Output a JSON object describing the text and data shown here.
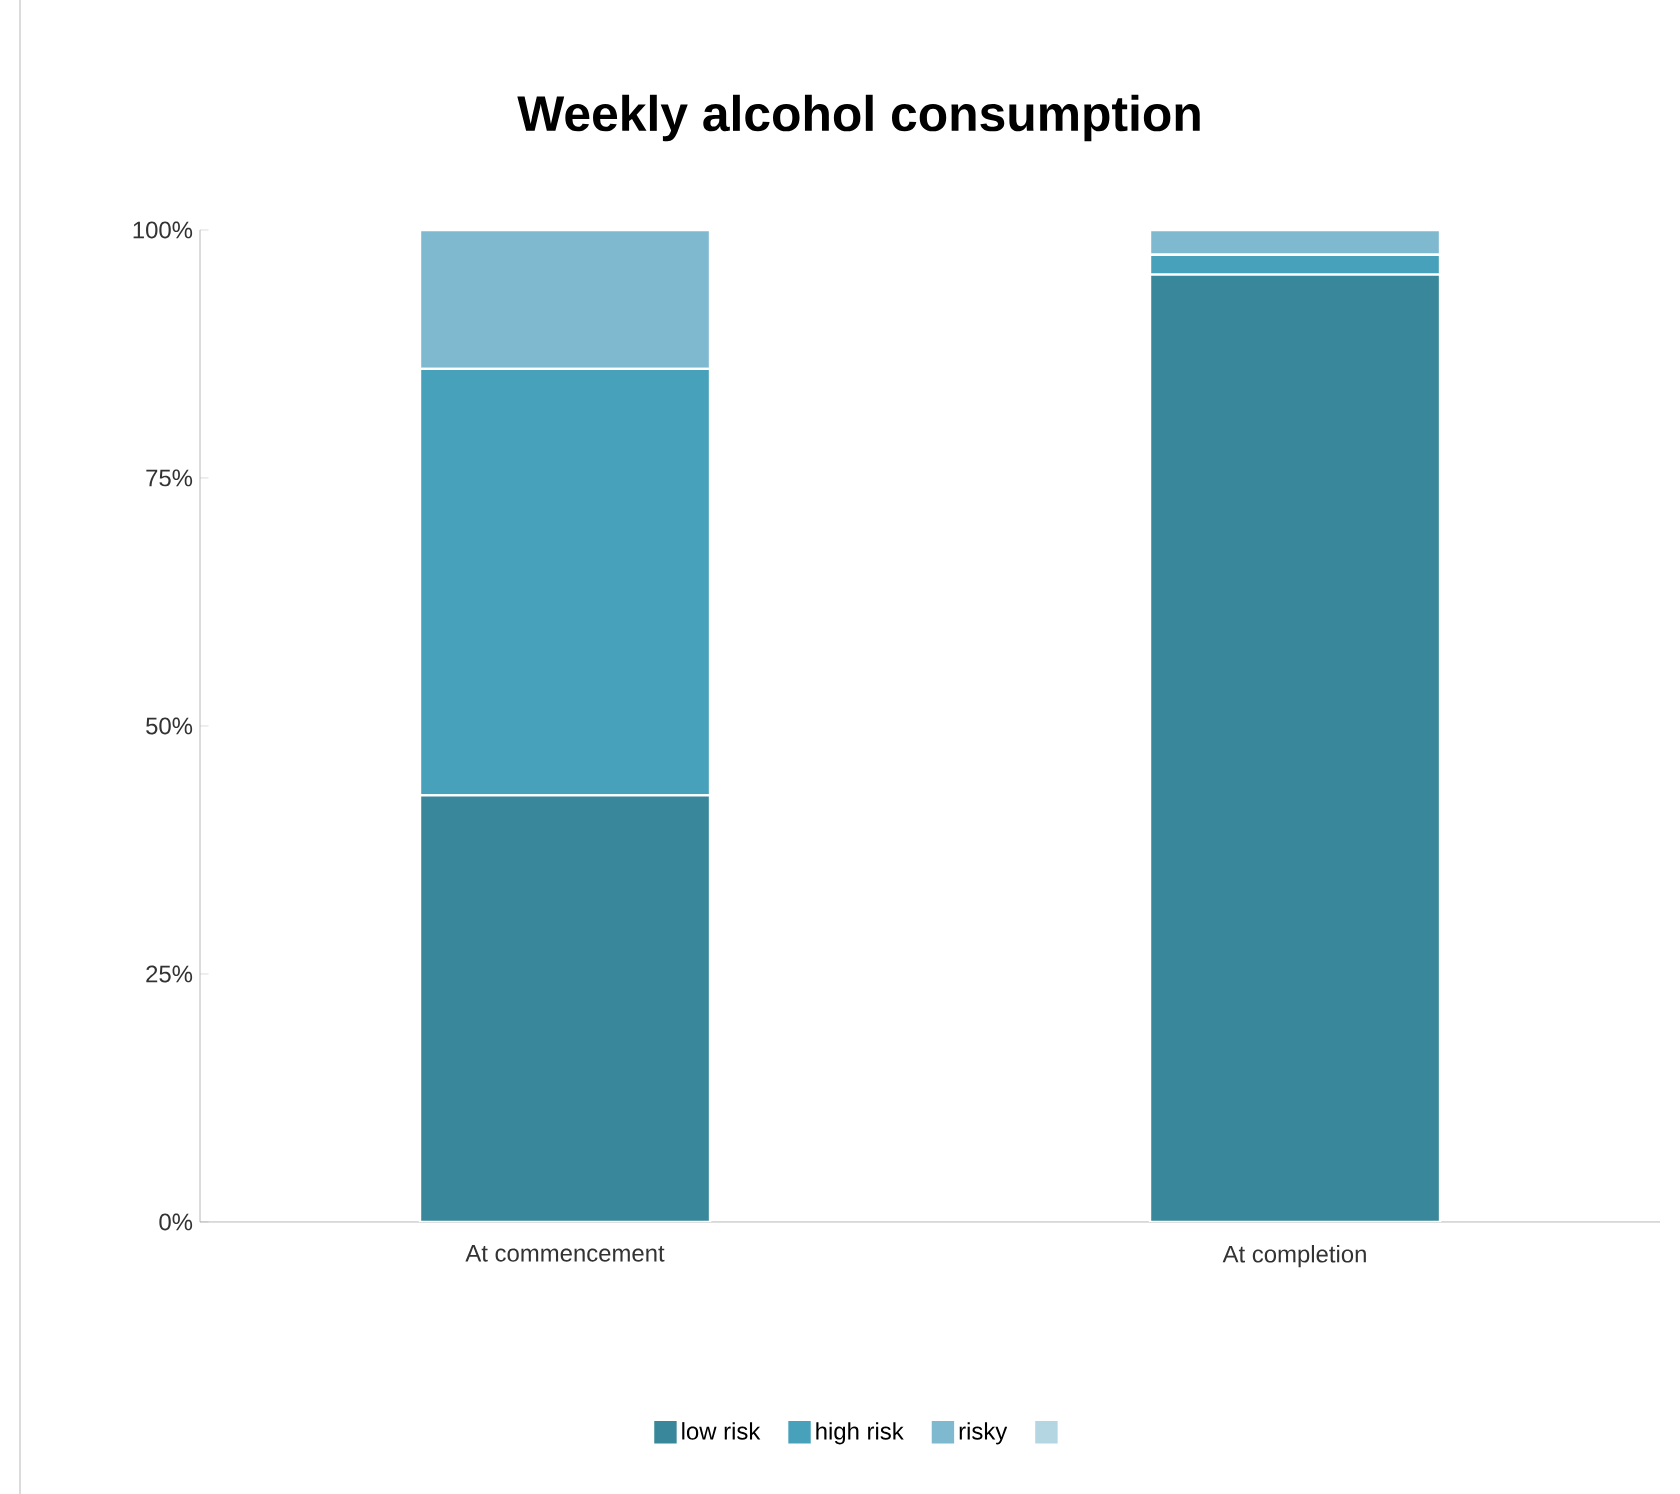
{
  "chart_data": {
    "type": "bar",
    "stacked": true,
    "title": "Weekly alcohol consumption",
    "categories": [
      "At commencement",
      "At completion"
    ],
    "series": [
      {
        "name": "low risk",
        "color": "#38879a",
        "values": [
          43,
          95.5
        ]
      },
      {
        "name": "high risk",
        "color": "#47a1ba",
        "values": [
          43,
          2
        ]
      },
      {
        "name": "risky",
        "color": "#7fb9cf",
        "values": [
          14,
          2.5
        ]
      },
      {
        "color": "#b4d6e2",
        "values": [
          0,
          0
        ]
      }
    ],
    "ylim": [
      0,
      100
    ],
    "yticks": [
      {
        "value": 0,
        "label": "0%"
      },
      {
        "value": 25,
        "label": "25%"
      },
      {
        "value": 50,
        "label": "50%"
      },
      {
        "value": 75,
        "label": "75%"
      },
      {
        "value": 100,
        "label": "100%"
      }
    ],
    "legend": "bottom",
    "grid": false
  }
}
